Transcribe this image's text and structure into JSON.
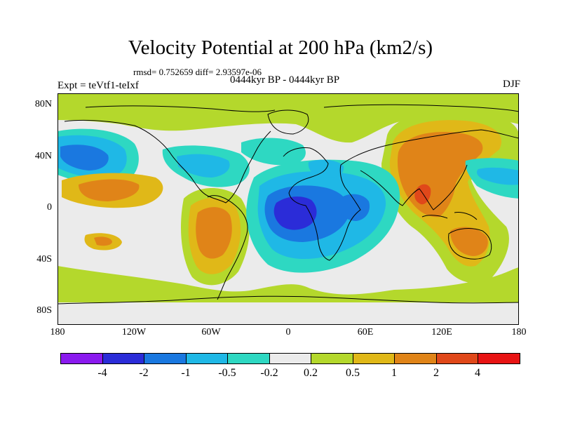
{
  "title": "Velocity Potential at 200 hPa (km2/s)",
  "stats": "rmsd= 0.752659 diff= 2.93597e-06",
  "experiment": "Expt = teVtf1-teIxf",
  "period": "0444kyr BP - 0444kyr BP",
  "season": "DJF",
  "y_axis_labels": [
    "80N",
    "40N",
    "0",
    "40S",
    "80S"
  ],
  "x_axis_labels": [
    "180",
    "120W",
    "60W",
    "0",
    "60E",
    "120E",
    "180"
  ],
  "colorbar": {
    "colors": [
      "#8a1aee",
      "#2b2cd8",
      "#1a78e0",
      "#1fb8e6",
      "#2ed8c2",
      "#ebebeb",
      "#b4d82c",
      "#e0b818",
      "#e08418",
      "#e0481a",
      "#e81414"
    ],
    "labels": [
      "-4",
      "-2",
      "-1",
      "-0.5",
      "-0.2",
      "0.2",
      "0.5",
      "1",
      "2",
      "4"
    ]
  }
}
